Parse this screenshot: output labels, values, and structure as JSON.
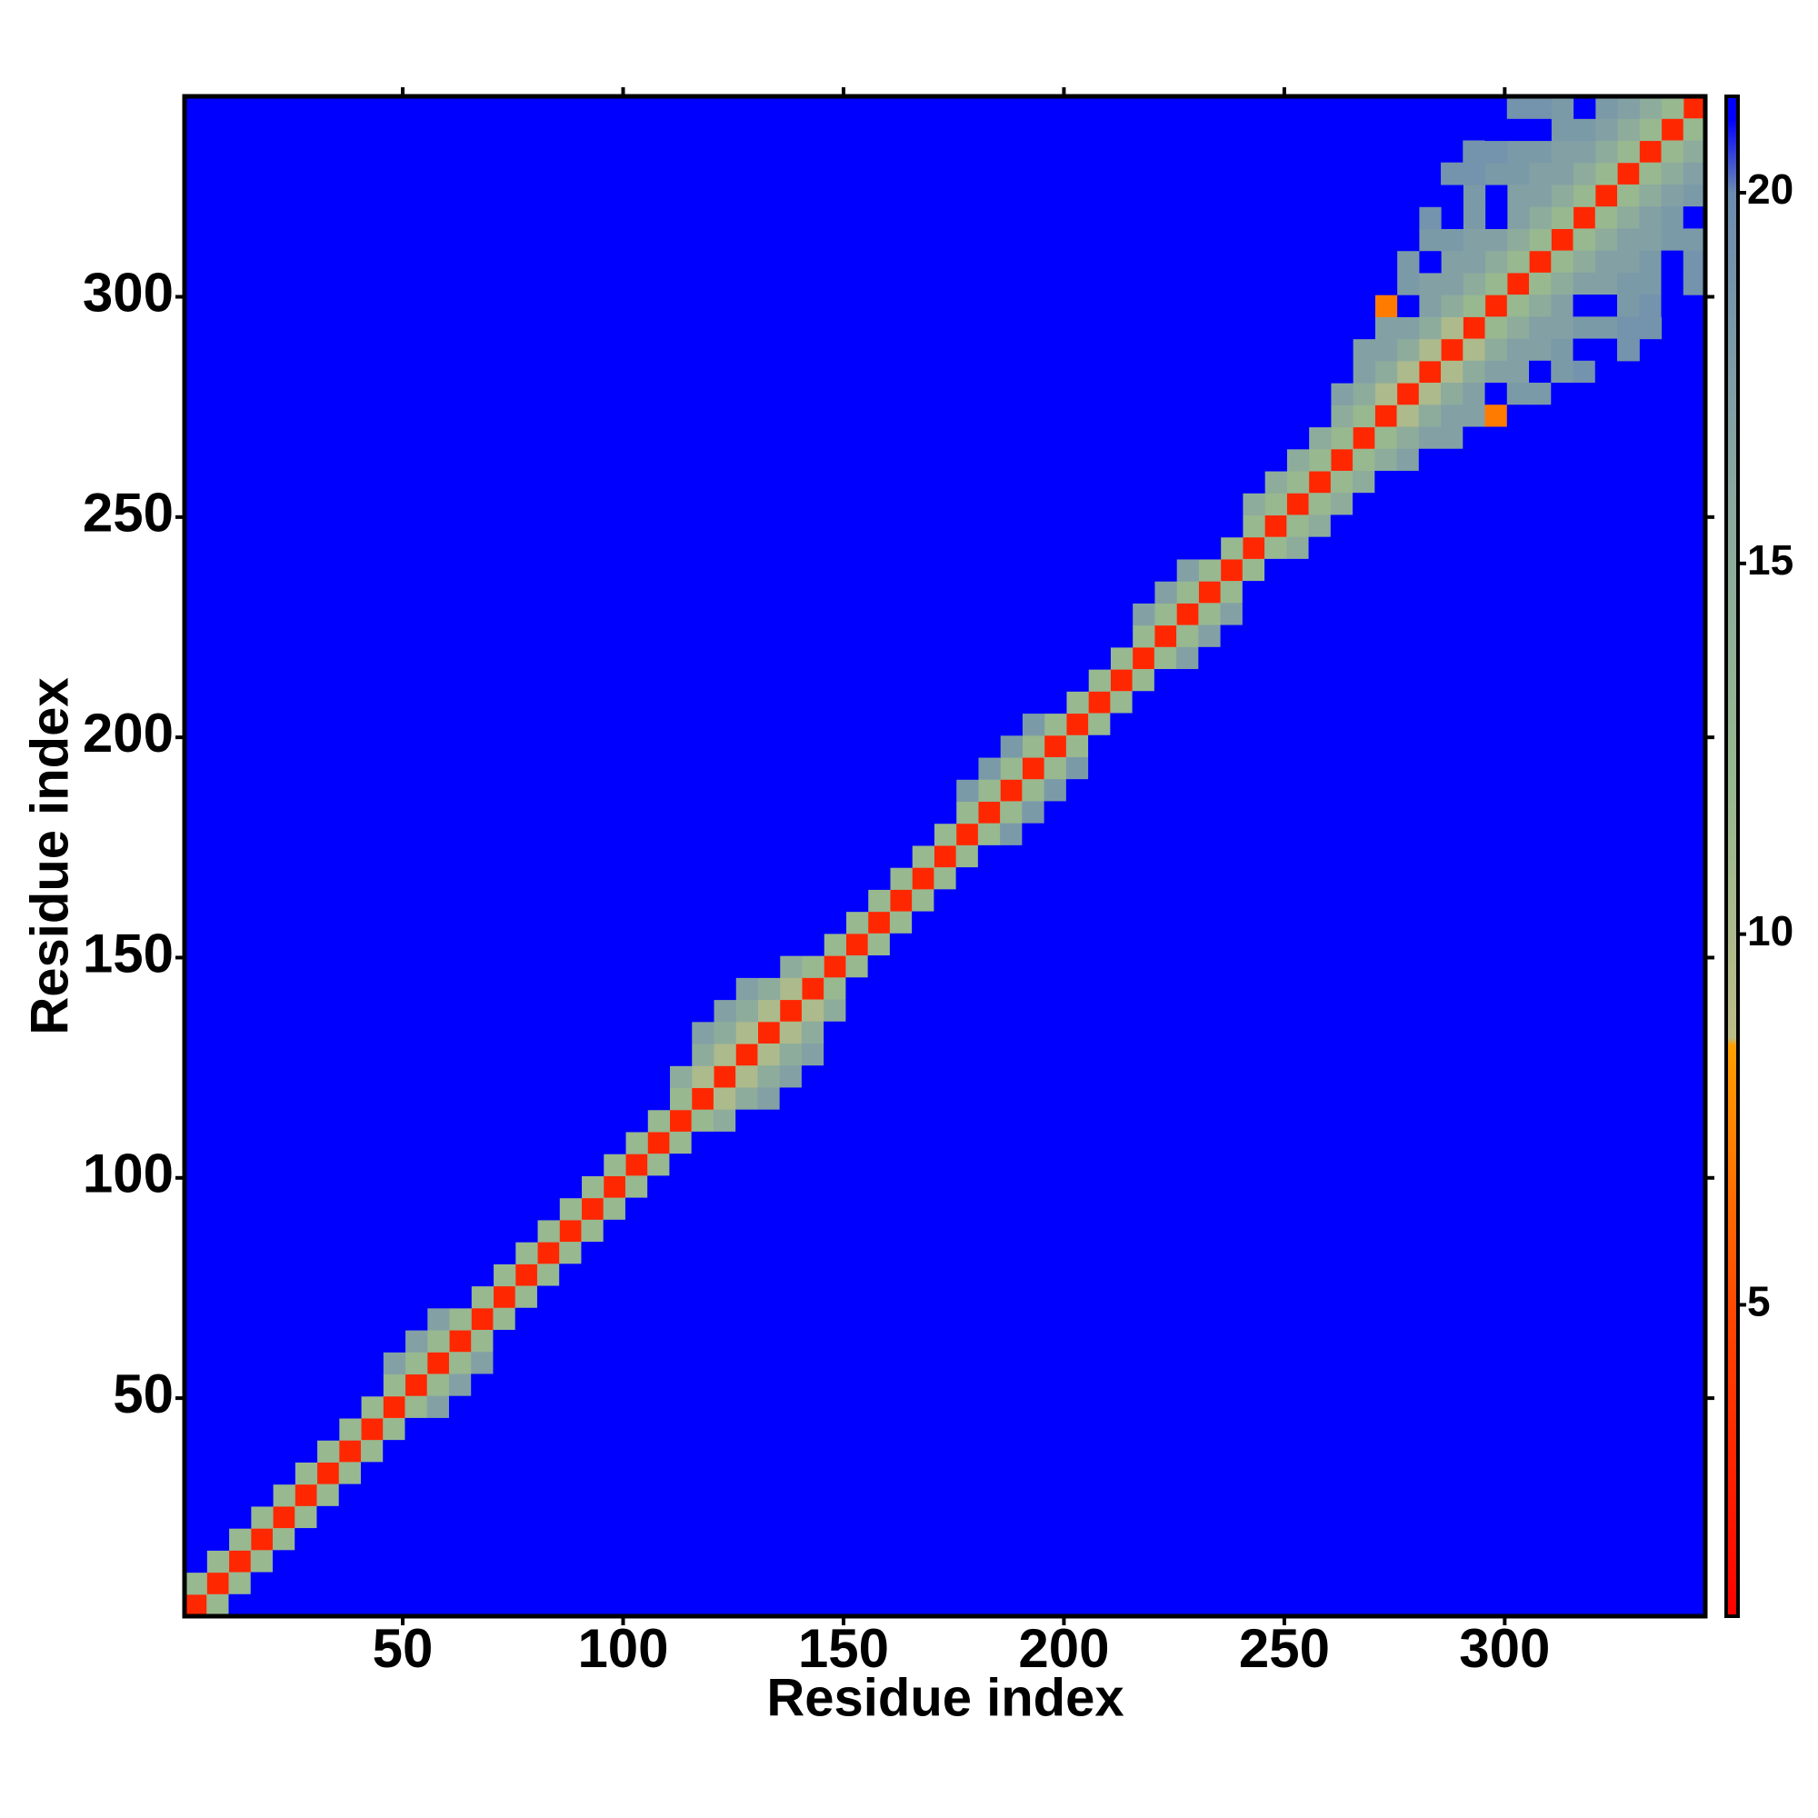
{
  "chart_data": {
    "type": "heatmap",
    "xlabel": "Residue index",
    "ylabel": "Residue index",
    "xlim": [
      0.5,
      345.5
    ],
    "ylim": [
      0.5,
      345.5
    ],
    "xticks": [
      50,
      100,
      150,
      200,
      250,
      300
    ],
    "yticks": [
      50,
      100,
      150,
      200,
      250,
      300
    ],
    "zlim": [
      0.8,
      21.3
    ],
    "zticks": [
      5,
      10,
      15,
      20
    ],
    "colorscale": [
      [
        0.8,
        "#ff0000"
      ],
      [
        5,
        "#ff4a00"
      ],
      [
        8.5,
        "#ffa000"
      ],
      [
        8.6,
        "#bcbc88"
      ],
      [
        12,
        "#98b890"
      ],
      [
        16,
        "#8aa8a0"
      ],
      [
        20,
        "#6c8cb0"
      ],
      [
        21,
        "#0000ff"
      ]
    ],
    "bin_width": 5,
    "bands": [
      {
        "offset": 0,
        "values": [
          3,
          3,
          3,
          3,
          3,
          3,
          3,
          3,
          3,
          3,
          3,
          3,
          3,
          3,
          3,
          3,
          3,
          3,
          3,
          3,
          3,
          3,
          3,
          3,
          3,
          3,
          3,
          3,
          3,
          3,
          3,
          3,
          3,
          3,
          3,
          3,
          3,
          3,
          3,
          3,
          3,
          3,
          3,
          3,
          3,
          3,
          3,
          3,
          3,
          3,
          3,
          3,
          3,
          3,
          3,
          3,
          3,
          3,
          3,
          3,
          3,
          3,
          3,
          3,
          3,
          3,
          3,
          3,
          3
        ]
      },
      {
        "offset": 1,
        "values": [
          12,
          12,
          12,
          12,
          12,
          12,
          12,
          12,
          12,
          12,
          12,
          12,
          12,
          12,
          12,
          12,
          12,
          12,
          12,
          12,
          12,
          12,
          12,
          10,
          10,
          10,
          10,
          10,
          12,
          12,
          12,
          12,
          12,
          12,
          12,
          12,
          12,
          12,
          12,
          12,
          12,
          12,
          12,
          12,
          12,
          12,
          12,
          12,
          12,
          12,
          12,
          12,
          12,
          12,
          10,
          10,
          10,
          10,
          12,
          12,
          12,
          12,
          12,
          12,
          12,
          12,
          12,
          12
        ]
      },
      {
        "offset": 2,
        "values": [
          21,
          21,
          21,
          21,
          21,
          21,
          21,
          21,
          21,
          17,
          17,
          17,
          21,
          21,
          21,
          21,
          21,
          21,
          21,
          21,
          21,
          21,
          15,
          15,
          15,
          15,
          15,
          15,
          21,
          21,
          21,
          21,
          21,
          21,
          21,
          18,
          18,
          18,
          18,
          21,
          21,
          21,
          21,
          17,
          17,
          17,
          21,
          21,
          15,
          15,
          15,
          15,
          15,
          15,
          15,
          15,
          15,
          15,
          15,
          15,
          15,
          15,
          15,
          15,
          15,
          15,
          15
        ]
      },
      {
        "offset": 3,
        "values": [
          21,
          21,
          21,
          21,
          21,
          21,
          21,
          21,
          21,
          21,
          21,
          21,
          21,
          21,
          21,
          21,
          21,
          21,
          21,
          21,
          21,
          21,
          21,
          17,
          17,
          17,
          21,
          21,
          21,
          21,
          21,
          21,
          21,
          21,
          21,
          21,
          21,
          21,
          21,
          21,
          21,
          21,
          21,
          21,
          21,
          21,
          21,
          21,
          21,
          21,
          21,
          21,
          17,
          17,
          17,
          17,
          17,
          17,
          17,
          17,
          17,
          17,
          17,
          17,
          17,
          17
        ]
      },
      {
        "offset": 4,
        "values": [
          21,
          21,
          21,
          21,
          21,
          21,
          21,
          21,
          21,
          21,
          21,
          21,
          21,
          21,
          21,
          21,
          21,
          21,
          21,
          21,
          21,
          21,
          21,
          21,
          21,
          21,
          21,
          21,
          21,
          21,
          21,
          21,
          21,
          21,
          21,
          21,
          21,
          21,
          21,
          21,
          21,
          21,
          21,
          21,
          21,
          21,
          21,
          21,
          21,
          21,
          21,
          21,
          21,
          17,
          17,
          21,
          17,
          17,
          17,
          21,
          17,
          17,
          17,
          18,
          18
        ]
      },
      {
        "offset": 5,
        "values": [
          21,
          21,
          21,
          21,
          21,
          21,
          21,
          21,
          21,
          21,
          21,
          21,
          21,
          21,
          21,
          21,
          21,
          21,
          21,
          21,
          21,
          21,
          21,
          21,
          21,
          21,
          21,
          21,
          21,
          21,
          21,
          21,
          21,
          21,
          21,
          21,
          21,
          21,
          21,
          21,
          21,
          21,
          21,
          21,
          21,
          21,
          21,
          21,
          21,
          21,
          21,
          21,
          21,
          21,
          7,
          18,
          21,
          18,
          18,
          21,
          18,
          18,
          18,
          21
        ]
      },
      {
        "offset": 6,
        "values": [
          21,
          21,
          21,
          21,
          21,
          21,
          21,
          21,
          21,
          21,
          21,
          21,
          21,
          21,
          21,
          21,
          21,
          21,
          21,
          21,
          21,
          21,
          21,
          21,
          21,
          21,
          21,
          21,
          21,
          21,
          21,
          21,
          21,
          21,
          21,
          21,
          21,
          21,
          21,
          21,
          21,
          21,
          21,
          21,
          21,
          21,
          21,
          21,
          21,
          21,
          21,
          21,
          21,
          21,
          21,
          18,
          18,
          21,
          18,
          18,
          18,
          21,
          18
        ]
      },
      {
        "offset": 7,
        "values": [
          21,
          21,
          21,
          21,
          21,
          21,
          21,
          21,
          21,
          21,
          21,
          21,
          21,
          21,
          21,
          21,
          21,
          21,
          21,
          21,
          21,
          21,
          21,
          21,
          21,
          21,
          21,
          21,
          21,
          21,
          21,
          21,
          21,
          21,
          21,
          21,
          21,
          21,
          21,
          21,
          21,
          21,
          21,
          21,
          21,
          21,
          21,
          21,
          21,
          21,
          21,
          21,
          21,
          21,
          21,
          21,
          19,
          21,
          19,
          19,
          21,
          19
        ]
      },
      {
        "offset": 8,
        "values": [
          21,
          21,
          21,
          21,
          21,
          21,
          21,
          21,
          21,
          21,
          21,
          21,
          21,
          21,
          21,
          21,
          21,
          21,
          21,
          21,
          21,
          21,
          21,
          21,
          21,
          21,
          21,
          21,
          21,
          21,
          21,
          21,
          21,
          21,
          21,
          21,
          21,
          21,
          21,
          21,
          21,
          21,
          21,
          21,
          21,
          21,
          21,
          21,
          21,
          21,
          21,
          21,
          21,
          21,
          21,
          21,
          21,
          19,
          19,
          21,
          19
        ]
      }
    ]
  }
}
